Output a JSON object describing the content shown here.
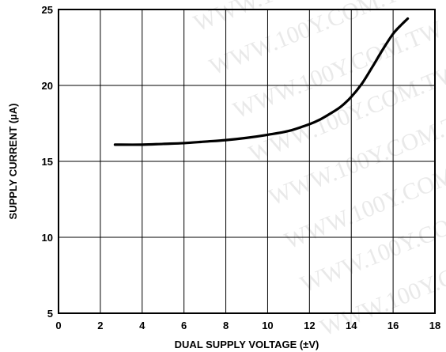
{
  "chart_data": {
    "type": "line",
    "title": "",
    "xlabel": "DUAL SUPPLY VOLTAGE (±V)",
    "ylabel": "SUPPLY CURRENT (µA)",
    "xlim": [
      0,
      18
    ],
    "ylim": [
      5,
      25
    ],
    "x_ticks": [
      0,
      2,
      4,
      6,
      8,
      10,
      12,
      14,
      16,
      18
    ],
    "y_ticks": [
      5,
      10,
      15,
      20,
      25
    ],
    "grid": true,
    "legend": "none",
    "series": [
      {
        "x": [
          2.7,
          4,
          5,
          6,
          7,
          8,
          9,
          10,
          11,
          12,
          12.5,
          13,
          13.5,
          14,
          14.5,
          15,
          15.5,
          16,
          16.4,
          16.7
        ],
        "y": [
          16.1,
          16.1,
          16.15,
          16.2,
          16.3,
          16.4,
          16.55,
          16.75,
          17.0,
          17.45,
          17.75,
          18.15,
          18.6,
          19.25,
          20.1,
          21.2,
          22.35,
          23.4,
          24.0,
          24.4
        ]
      }
    ]
  },
  "watermark": "WWW.100Y.COM.TW"
}
